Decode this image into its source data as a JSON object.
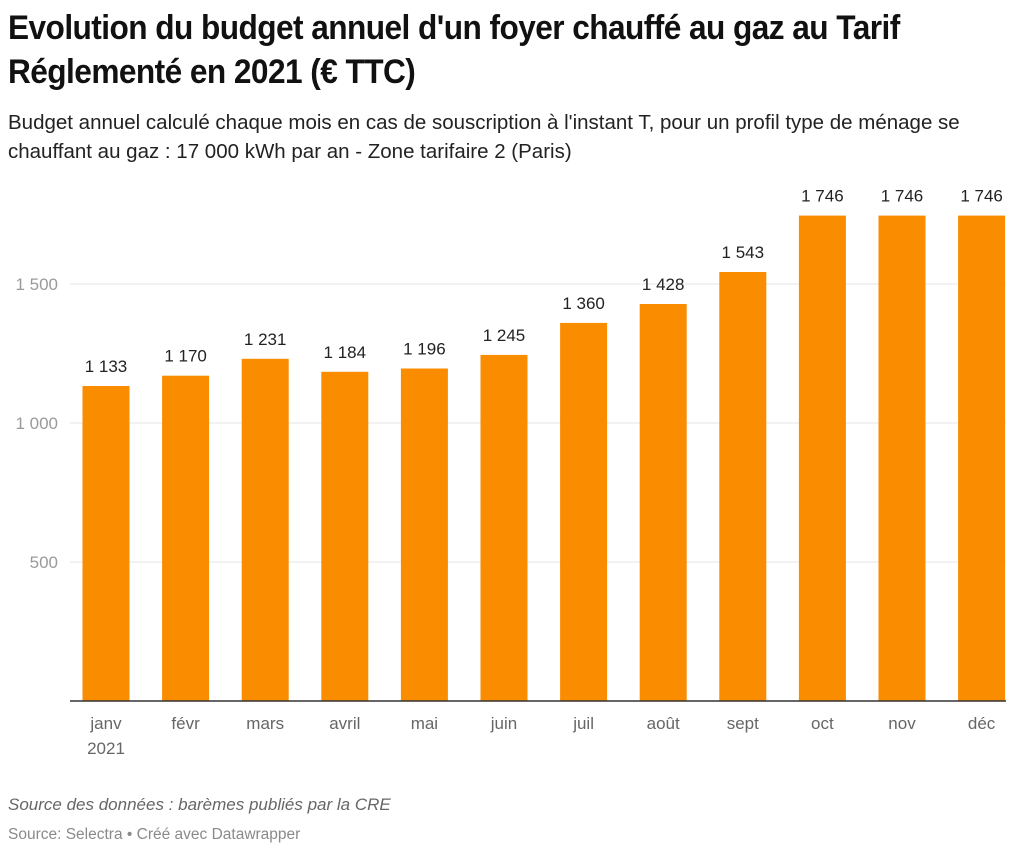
{
  "header": {
    "title": "Evolution du budget annuel d'un foyer chauffé au gaz au Tarif Réglementé en 2021 (€ TTC)",
    "subtitle": "Budget annuel calculé chaque mois en cas de souscription à l'instant T, pour un profil type de ménage se chauffant au gaz : 17 000 kWh par an - Zone tarifaire 2 (Paris)"
  },
  "footer": {
    "notes": "Source des données : barèmes publiés par la CRE",
    "byline": "Source: Selectra • Créé avec Datawrapper"
  },
  "colors": {
    "bar": "#fa8c00",
    "grid": "#e6e6e6",
    "axis": "#333333"
  },
  "chart_data": {
    "type": "bar",
    "title": "Evolution du budget annuel d'un foyer chauffé au gaz au Tarif Réglementé en 2021 (€ TTC)",
    "subtitle": "Budget annuel calculé chaque mois en cas de souscription à l'instant T, pour un profil type de ménage se chauffant au gaz : 17 000 kWh par an - Zone tarifaire 2 (Paris)",
    "xlabel": "",
    "ylabel": "",
    "categories": [
      "janv\n2021",
      "févr",
      "mars",
      "avril",
      "mai",
      "juin",
      "juil",
      "août",
      "sept",
      "oct",
      "nov",
      "déc"
    ],
    "values": [
      1133,
      1170,
      1231,
      1184,
      1196,
      1245,
      1360,
      1428,
      1543,
      1746,
      1746,
      1746
    ],
    "value_labels": [
      "1 133",
      "1 170",
      "1 231",
      "1 184",
      "1 196",
      "1 245",
      "1 360",
      "1 428",
      "1 543",
      "1 746",
      "1 746",
      "1 746"
    ],
    "ylim": [
      0,
      1746
    ],
    "yticks": [
      500,
      1000,
      1500
    ],
    "ytick_labels": [
      "500",
      "1 000",
      "1 500"
    ],
    "grid": true,
    "legend": "none"
  }
}
